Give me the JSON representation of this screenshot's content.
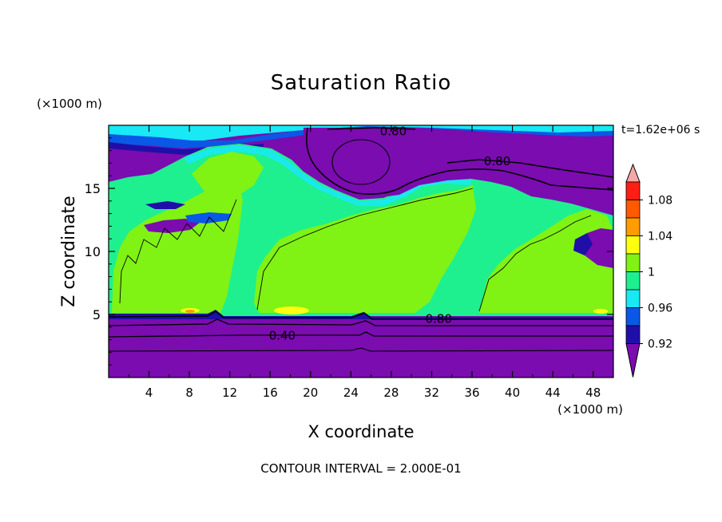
{
  "chart_data": {
    "type": "heatmap",
    "title": "Saturation Ratio",
    "xlabel": "X coordinate",
    "ylabel": "Z coordinate",
    "x_unit": "(×1000 m)",
    "y_unit": "(×1000 m)",
    "time_label": "t=1.62e+06 s",
    "footer": "CONTOUR INTERVAL = 2.000E-01",
    "xlim": [
      0,
      50
    ],
    "ylim": [
      0,
      20
    ],
    "x_ticks": [
      4,
      8,
      12,
      16,
      20,
      24,
      28,
      32,
      36,
      40,
      44,
      48
    ],
    "y_ticks": [
      5,
      10,
      15
    ],
    "colorbar": {
      "labels": [
        "0.92",
        "0.96",
        "1",
        "1.04",
        "1.08"
      ],
      "bins": [
        {
          "color": "#7a0cb0"
        },
        {
          "color": "#1f0fa8"
        },
        {
          "color": "#0a58e6"
        },
        {
          "color": "#19e8f5"
        },
        {
          "color": "#1ef08f"
        },
        {
          "color": "#80f214"
        },
        {
          "color": "#ffff10"
        },
        {
          "color": "#ff9c00"
        },
        {
          "color": "#ff5a00"
        },
        {
          "color": "#ff1e14"
        },
        {
          "color": "#f5a8a8"
        }
      ]
    },
    "contour_labels": [
      {
        "text": "0.80",
        "x": 28.2,
        "z": 19.6
      },
      {
        "text": "0.80",
        "x": 38.5,
        "z": 17.2
      },
      {
        "text": "0.80",
        "x": 32.7,
        "z": 4.7
      },
      {
        "text": "0.40",
        "x": 17.2,
        "z": 3.4
      }
    ]
  }
}
